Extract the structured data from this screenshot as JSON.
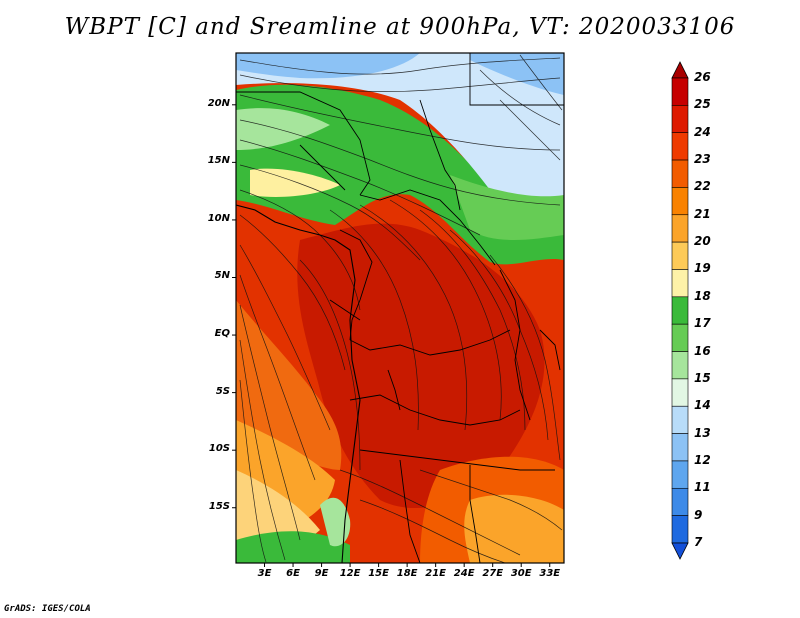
{
  "title": "WBPT [C] and Sreamline at 900hPa, VT: 2020033106",
  "footer": "GrADS: IGES/COLA",
  "lat_labels": [
    "20N",
    "15N",
    "10N",
    "5N",
    "EQ",
    "5S",
    "10S",
    "15S"
  ],
  "lat_values": [
    20,
    15,
    10,
    5,
    0,
    -5,
    -10,
    -15
  ],
  "lon_labels": [
    "3E",
    "6E",
    "9E",
    "12E",
    "15E",
    "18E",
    "21E",
    "24E",
    "27E",
    "30E",
    "33E"
  ],
  "lon_values": [
    3,
    6,
    9,
    12,
    15,
    18,
    21,
    24,
    27,
    30,
    33
  ],
  "map_extent": {
    "lon": [
      0,
      34.5
    ],
    "lat": [
      -19.8,
      24.5
    ]
  },
  "colorbar": {
    "labels": [
      "26",
      "25",
      "24",
      "23",
      "22",
      "21",
      "20",
      "19",
      "18",
      "17",
      "16",
      "15",
      "14",
      "13",
      "12",
      "11",
      "9",
      "7"
    ],
    "colors": [
      "#c60000",
      "#de1a00",
      "#ef3a00",
      "#f25c00",
      "#f98200",
      "#fba42a",
      "#fdca58",
      "#fef2a8",
      "#3aba3a",
      "#66cc55",
      "#a6e59c",
      "#e2f7e4",
      "#b8dcf9",
      "#8cc2f5",
      "#5ea6ef",
      "#3d8ae8",
      "#1f6ae0"
    ]
  },
  "colors": {
    "hot": "#d92a00",
    "warm": "#f25c00",
    "mild": "#fba42a",
    "cool_yellow": "#fef0a0",
    "green": "#3aba3a",
    "light_green": "#a6e59c",
    "blue_light": "#cfe7fb",
    "blue": "#8cc2f5"
  }
}
